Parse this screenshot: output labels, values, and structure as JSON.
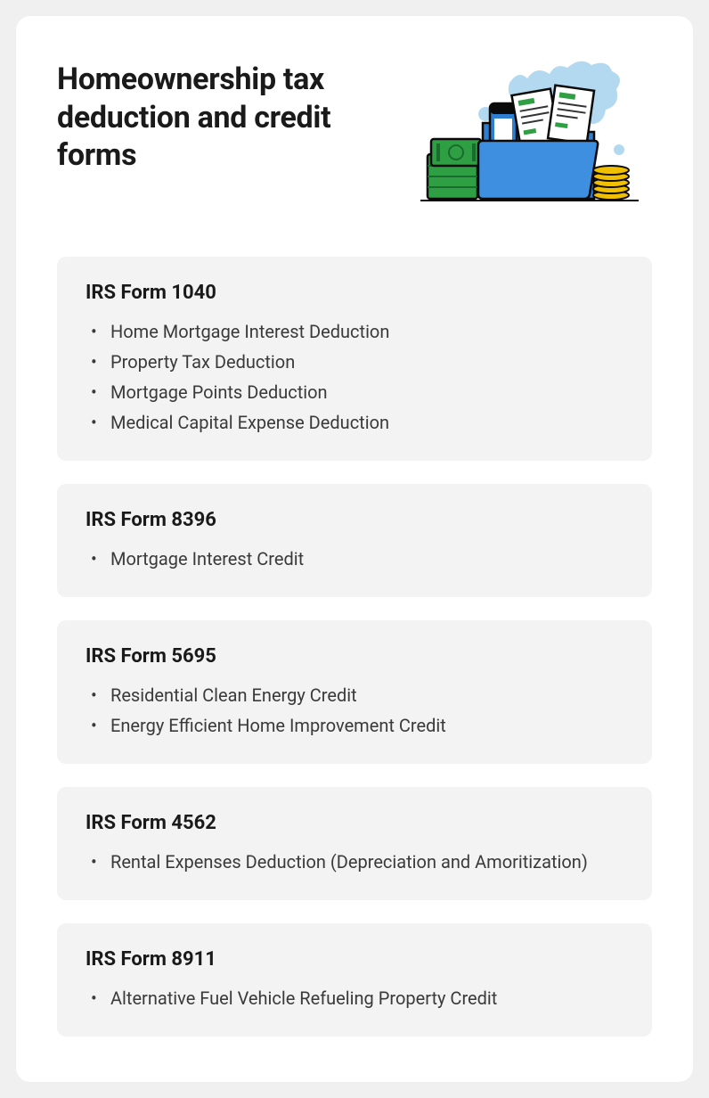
{
  "title": "Homeownership tax deduction and credit forms",
  "sections": [
    {
      "heading": "IRS Form 1040",
      "items": [
        "Home Mortgage Interest Deduction",
        "Property Tax Deduction",
        "Mortgage Points Deduction",
        "Medical Capital Expense Deduction"
      ]
    },
    {
      "heading": "IRS Form 8396",
      "items": [
        "Mortgage Interest Credit"
      ]
    },
    {
      "heading": "IRS Form 5695",
      "items": [
        "Residential Clean Energy Credit",
        "Energy Efficient Home Improvement Credit"
      ]
    },
    {
      "heading": "IRS Form 4562",
      "items": [
        "Rental Expenses Deduction (Depreciation and Amoritization)"
      ]
    },
    {
      "heading": "IRS Form 8911",
      "items": [
        "Alternative Fuel Vehicle Refueling Property Credit"
      ]
    }
  ],
  "colors": {
    "page_bg": "#f0f0f0",
    "card_bg": "#ffffff",
    "section_bg": "#f3f3f3",
    "title_color": "#1a1a1a",
    "text_color": "#3a3a3a",
    "folder_blue": "#2e7ed1",
    "folder_front": "#3e8fe0",
    "cloud_blue": "#b3d9f0",
    "money_green": "#2ea043",
    "money_dark_green": "#1a6b2e",
    "coin_yellow": "#f0c000",
    "coin_dark": "#c89800",
    "doc_white": "#ffffff",
    "doc_line": "#333333",
    "doc_green": "#2ea043",
    "phone_blue": "#2e7ed1",
    "phone_top": "#0a0a0a"
  }
}
